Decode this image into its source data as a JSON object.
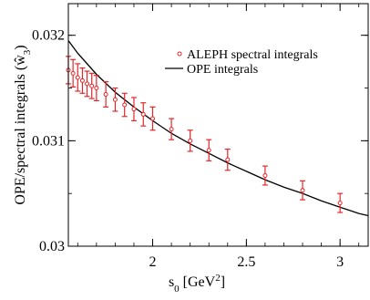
{
  "chart_data": {
    "type": "scatter",
    "xlabel": "s",
    "xlabel_sub": "0",
    "xlabel_unit_pre": " [GeV",
    "xlabel_unit_sup": "2",
    "xlabel_unit_post": "]",
    "ylabel": "OPE/spectral integrals (",
    "ylabel_sym": "ŵ",
    "ylabel_sub": "3",
    "ylabel_close": ")",
    "xlim": [
      1.55,
      3.15
    ],
    "ylim": [
      0.03,
      0.0323
    ],
    "x_ticks": [
      {
        "value": 2,
        "label": "2"
      },
      {
        "value": 2.5,
        "label": "2.5"
      },
      {
        "value": 3,
        "label": "3"
      }
    ],
    "y_ticks": [
      {
        "value": 0.03,
        "label": "0.03"
      },
      {
        "value": 0.031,
        "label": "0.031"
      },
      {
        "value": 0.032,
        "label": "0.032"
      }
    ],
    "legend_position": "top-right",
    "colors": {
      "points": "#e8252a",
      "curve": "#000000",
      "axes": "#000000"
    },
    "series": [
      {
        "name": "ALEPH spectral integrals",
        "kind": "points-with-errors",
        "x": [
          1.55,
          1.575,
          1.6,
          1.625,
          1.65,
          1.675,
          1.7,
          1.75,
          1.8,
          1.85,
          1.9,
          1.95,
          2.0,
          2.1,
          2.2,
          2.3,
          2.4,
          2.6,
          2.8,
          3.0
        ],
        "y": [
          0.03167,
          0.03164,
          0.0316,
          0.03157,
          0.03154,
          0.03152,
          0.0315,
          0.03144,
          0.03139,
          0.03134,
          0.0313,
          0.03125,
          0.03121,
          0.03111,
          0.031,
          0.03091,
          0.03082,
          0.03067,
          0.03053,
          0.03041
        ],
        "err": [
          0.00013,
          0.00013,
          0.00013,
          0.00012,
          0.00012,
          0.00012,
          0.00012,
          0.00012,
          0.00011,
          0.00011,
          0.00011,
          0.00011,
          0.00011,
          0.0001,
          0.0001,
          0.0001,
          0.0001,
          9e-05,
          9e-05,
          9e-05
        ]
      },
      {
        "name": "OPE integrals",
        "kind": "line",
        "x": [
          1.55,
          1.6,
          1.7,
          1.8,
          1.9,
          2.0,
          2.1,
          2.2,
          2.3,
          2.4,
          2.5,
          2.6,
          2.7,
          2.8,
          2.9,
          3.0,
          3.1,
          3.15
        ],
        "y": [
          0.03195,
          0.03183,
          0.03163,
          0.03146,
          0.03132,
          0.03119,
          0.03107,
          0.03097,
          0.03088,
          0.03079,
          0.03071,
          0.03063,
          0.03056,
          0.0305,
          0.03043,
          0.03037,
          0.03031,
          0.03029
        ]
      }
    ]
  }
}
